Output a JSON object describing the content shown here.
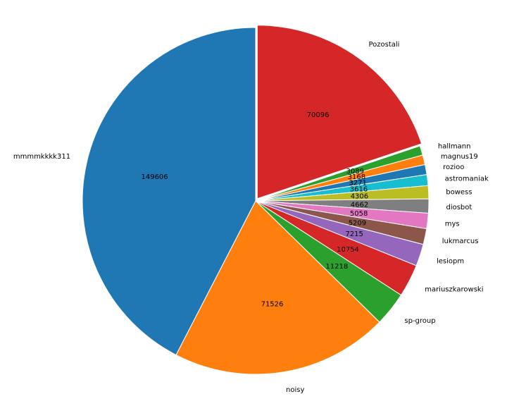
{
  "chart_data": {
    "type": "pie",
    "title": "",
    "start_angle_deg": 90,
    "direction": "clockwise",
    "explode_first": true,
    "slices": [
      {
        "label": "Pozostali",
        "value": 70096,
        "color": "#d62728",
        "value_label": "70096"
      },
      {
        "label": "hallmann",
        "value": 3089,
        "color": "#2ca02c",
        "value_label": "3089"
      },
      {
        "label": "magnus19",
        "value": 3168,
        "color": "#ff7f0e",
        "value_label": "3168"
      },
      {
        "label": "rozioo",
        "value": 3271,
        "color": "#1f77b4",
        "value_label": "3271"
      },
      {
        "label": "astromaniak",
        "value": 3616,
        "color": "#17becf",
        "value_label": "3616"
      },
      {
        "label": "bowess",
        "value": 4306,
        "color": "#bcbd22",
        "value_label": "4306"
      },
      {
        "label": "diosbot",
        "value": 4662,
        "color": "#7f7f7f",
        "value_label": "4662"
      },
      {
        "label": "mys",
        "value": 5058,
        "color": "#e377c2",
        "value_label": "5058"
      },
      {
        "label": "lukmarcus",
        "value": 5209,
        "color": "#8c564b",
        "value_label": "5209"
      },
      {
        "label": "lesiopm",
        "value": 7215,
        "color": "#9467bd",
        "value_label": "7215"
      },
      {
        "label": "mariuszkarowski",
        "value": 10754,
        "color": "#d62728",
        "value_label": "10754"
      },
      {
        "label": "sp-group",
        "value": 11218,
        "color": "#2ca02c",
        "value_label": "11218"
      },
      {
        "label": "noisy",
        "value": 71526,
        "color": "#ff7f0e",
        "value_label": "71526"
      },
      {
        "label": "mmmmkkkk311",
        "value": 149606,
        "color": "#1f77b4",
        "value_label": "149606"
      }
    ]
  }
}
